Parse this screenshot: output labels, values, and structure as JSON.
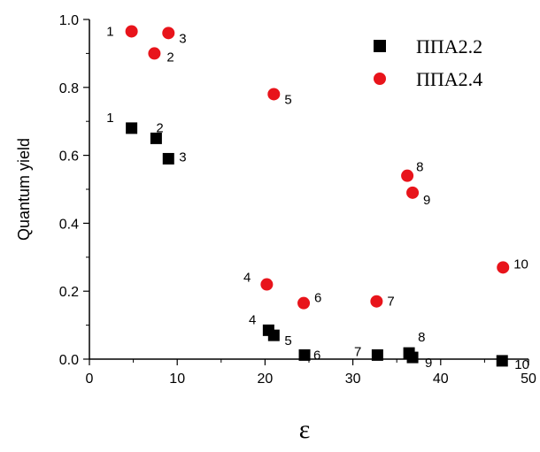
{
  "chart_data": {
    "type": "scatter",
    "xlabel": "ε",
    "ylabel": "Quantum yield",
    "xlim": [
      0,
      50
    ],
    "ylim": [
      0,
      1.0
    ],
    "x_ticks": [
      "0",
      "10",
      "20",
      "30",
      "40",
      "50"
    ],
    "y_ticks": [
      "0.0",
      "0.2",
      "0.4",
      "0.6",
      "0.8",
      "1.0"
    ],
    "legend_position": "top-right",
    "series": [
      {
        "name": "ППА2.2",
        "marker": "square",
        "color": "#000000",
        "points": [
          {
            "x": 4.8,
            "y": 0.68,
            "label": "1"
          },
          {
            "x": 7.6,
            "y": 0.65,
            "label": "2"
          },
          {
            "x": 9.0,
            "y": 0.59,
            "label": "3"
          },
          {
            "x": 20.4,
            "y": 0.085,
            "label": "4"
          },
          {
            "x": 21.0,
            "y": 0.07,
            "label": "5"
          },
          {
            "x": 24.5,
            "y": 0.012,
            "label": "6"
          },
          {
            "x": 32.8,
            "y": 0.012,
            "label": "7"
          },
          {
            "x": 36.4,
            "y": 0.018,
            "label": "8"
          },
          {
            "x": 36.8,
            "y": 0.005,
            "label": "9"
          },
          {
            "x": 47.0,
            "y": -0.005,
            "label": "10"
          }
        ]
      },
      {
        "name": "ППА2.4",
        "marker": "circle",
        "color": "#e8141b",
        "points": [
          {
            "x": 4.8,
            "y": 0.965,
            "label": "1"
          },
          {
            "x": 7.4,
            "y": 0.9,
            "label": "2"
          },
          {
            "x": 9.0,
            "y": 0.96,
            "label": "3"
          },
          {
            "x": 20.2,
            "y": 0.22,
            "label": "4"
          },
          {
            "x": 21.0,
            "y": 0.78,
            "label": "5"
          },
          {
            "x": 24.4,
            "y": 0.165,
            "label": "6"
          },
          {
            "x": 32.7,
            "y": 0.17,
            "label": "7"
          },
          {
            "x": 36.2,
            "y": 0.54,
            "label": "8"
          },
          {
            "x": 36.8,
            "y": 0.49,
            "label": "9"
          },
          {
            "x": 47.1,
            "y": 0.27,
            "label": "10"
          }
        ]
      }
    ]
  }
}
